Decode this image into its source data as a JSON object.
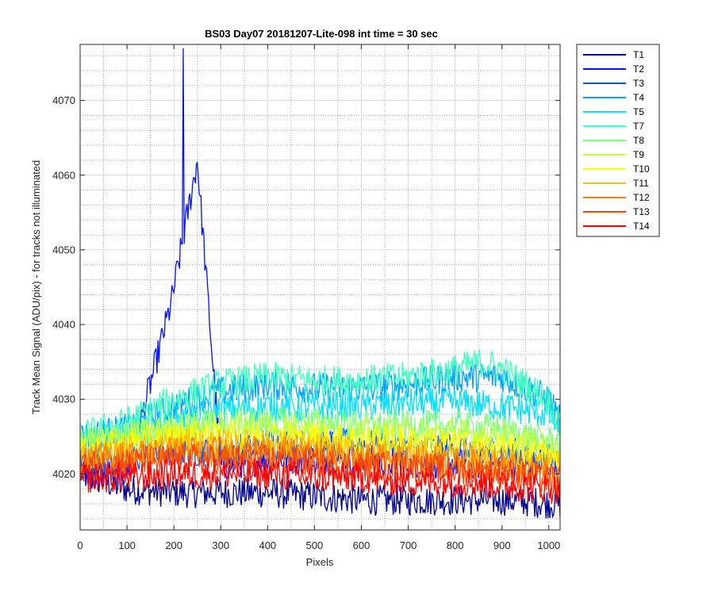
{
  "chart_data": {
    "type": "line",
    "title": "BS03 Day07 20181207-Lite-098 int time = 30 sec",
    "xlabel": "Pixels",
    "ylabel": "Track Mean Signal (ADU/pix) - for tracks not illuminated",
    "xlim": [
      0,
      1024
    ],
    "ylim": [
      4012.5,
      4077.5
    ],
    "xticks": [
      0,
      100,
      200,
      300,
      400,
      500,
      600,
      700,
      800,
      900,
      1000
    ],
    "yticks": [
      4020,
      4030,
      4040,
      4050,
      4060,
      4070
    ],
    "grid": true,
    "minor_grid": true,
    "legend_position": "outside-top-right",
    "series": [
      {
        "name": "T1",
        "color": "#00008f",
        "x": [
          0,
          100,
          200,
          300,
          400,
          500,
          600,
          700,
          800,
          900,
          1024
        ],
        "y": [
          4020,
          4018,
          4017.5,
          4017.5,
          4017.5,
          4017,
          4016.5,
          4016.5,
          4016.5,
          4016.5,
          4016
        ]
      },
      {
        "name": "T2",
        "color": "#0010ff",
        "x": [
          0,
          100,
          195,
          220,
          250,
          300,
          400,
          500,
          600,
          700,
          800,
          900,
          1024
        ],
        "y": [
          4020,
          4020,
          4043,
          4077,
          4062,
          4021,
          4022,
          4022,
          4022,
          4021.5,
          4021.5,
          4021,
          4021
        ]
      },
      {
        "name": "T3",
        "color": "#0050ff",
        "x": [
          0,
          100,
          200,
          300,
          400,
          500,
          600,
          700,
          800,
          900,
          1024
        ],
        "y": [
          4022,
          4022,
          4023,
          4023,
          4024,
          4024,
          4024,
          4023.5,
          4023.5,
          4023,
          4022
        ]
      },
      {
        "name": "T4",
        "color": "#00a0ff",
        "x": [
          0,
          100,
          200,
          300,
          400,
          500,
          600,
          700,
          800,
          900,
          1000,
          1024
        ],
        "y": [
          4025,
          4026,
          4029,
          4031,
          4032,
          4031.5,
          4031.5,
          4032,
          4033,
          4033,
          4030,
          4027
        ]
      },
      {
        "name": "T5",
        "color": "#00e0ff",
        "x": [
          0,
          100,
          200,
          300,
          400,
          500,
          600,
          700,
          800,
          900,
          1000,
          1024
        ],
        "y": [
          4024,
          4025,
          4027,
          4028.5,
          4029,
          4029,
          4029,
          4029.5,
          4029.5,
          4029,
          4028,
          4026
        ]
      },
      {
        "name": "T7",
        "color": "#40ffbf",
        "x": [
          0,
          100,
          200,
          300,
          400,
          500,
          600,
          700,
          800,
          860,
          900,
          1000,
          1024
        ],
        "y": [
          4025,
          4027,
          4030,
          4032,
          4033,
          4032.5,
          4032.5,
          4033,
          4034,
          4035,
          4034,
          4030,
          4026
        ]
      },
      {
        "name": "T8",
        "color": "#80ff80",
        "x": [
          0,
          100,
          200,
          300,
          400,
          500,
          600,
          700,
          800,
          900,
          1024
        ],
        "y": [
          4024,
          4025,
          4026.5,
          4027,
          4027,
          4027,
          4026.5,
          4026.5,
          4026.5,
          4026,
          4024
        ]
      },
      {
        "name": "T9",
        "color": "#bfff40",
        "x": [
          0,
          100,
          200,
          300,
          400,
          500,
          600,
          700,
          800,
          900,
          1024
        ],
        "y": [
          4024,
          4025,
          4026,
          4026.5,
          4026.5,
          4026,
          4025.5,
          4025.5,
          4025.5,
          4025,
          4023
        ]
      },
      {
        "name": "T10",
        "color": "#ffff00",
        "x": [
          0,
          100,
          200,
          300,
          400,
          500,
          600,
          700,
          800,
          900,
          1024
        ],
        "y": [
          4023,
          4024,
          4025,
          4025,
          4025,
          4025,
          4024.5,
          4024.5,
          4024,
          4023.5,
          4022
        ]
      },
      {
        "name": "T11",
        "color": "#ffbf00",
        "x": [
          0,
          100,
          200,
          300,
          400,
          500,
          600,
          700,
          800,
          900,
          1024
        ],
        "y": [
          4022.5,
          4023,
          4024,
          4024,
          4024,
          4023.5,
          4023,
          4023,
          4022.5,
          4022,
          4021
        ]
      },
      {
        "name": "T12",
        "color": "#ff8000",
        "x": [
          0,
          100,
          200,
          300,
          400,
          500,
          600,
          700,
          800,
          900,
          1024
        ],
        "y": [
          4022,
          4022.5,
          4023,
          4023,
          4023,
          4022.5,
          4022,
          4022,
          4021.5,
          4021,
          4020
        ]
      },
      {
        "name": "T13",
        "color": "#ff4000",
        "x": [
          0,
          100,
          200,
          300,
          400,
          500,
          600,
          700,
          800,
          900,
          1024
        ],
        "y": [
          4021,
          4021.5,
          4022,
          4022,
          4022,
          4021.5,
          4021,
          4021,
          4020.5,
          4020,
          4019
        ]
      },
      {
        "name": "T14",
        "color": "#ff0000",
        "x": [
          0,
          100,
          200,
          300,
          400,
          500,
          600,
          700,
          800,
          900,
          1024
        ],
        "y": [
          4019.5,
          4019.5,
          4020,
          4020,
          4020,
          4019.5,
          4019.5,
          4019,
          4019,
          4018.5,
          4018
        ]
      }
    ]
  }
}
